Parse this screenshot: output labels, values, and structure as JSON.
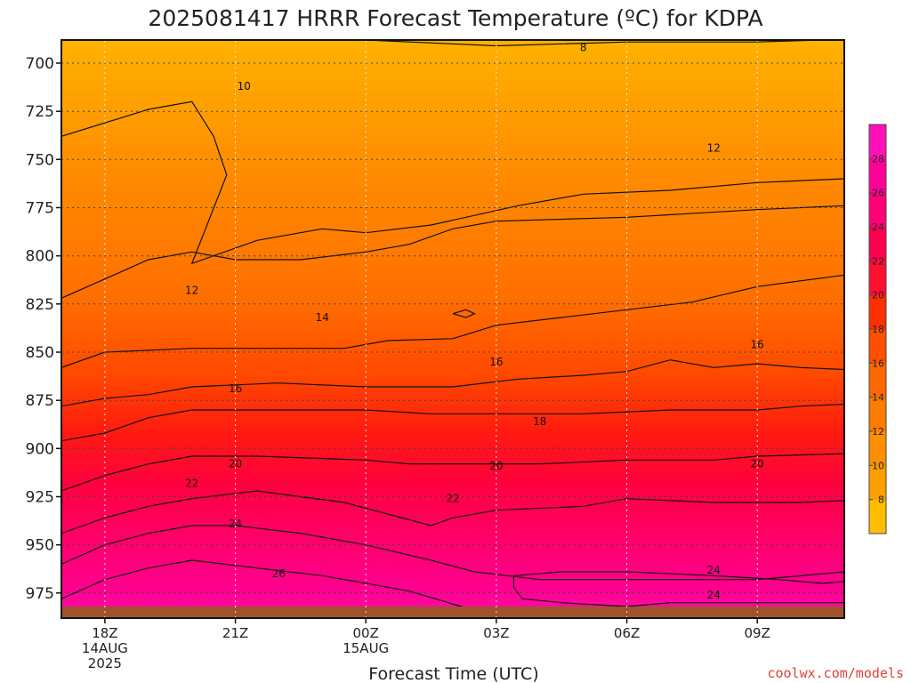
{
  "chart_data": {
    "type": "heatmap",
    "title": "2025081417 HRRR Forecast Temperature (ºC) for KDPA",
    "xlabel": "Forecast Time (UTC)",
    "ylabel": "",
    "y_axis": {
      "unit": "hPa",
      "inverted": true,
      "ylim": [
        988,
        688
      ],
      "ticks": [
        700,
        725,
        750,
        775,
        800,
        825,
        850,
        875,
        900,
        925,
        950,
        975
      ]
    },
    "x_axis": {
      "unit": "forecast hour",
      "xlim": [
        -1,
        17
      ],
      "ticks": [
        {
          "hour": 0,
          "lines": [
            "18Z",
            "14AUG",
            "2025"
          ]
        },
        {
          "hour": 3,
          "lines": [
            "21Z"
          ]
        },
        {
          "hour": 6,
          "lines": [
            "00Z",
            "15AUG"
          ]
        },
        {
          "hour": 9,
          "lines": [
            "03Z"
          ]
        },
        {
          "hour": 12,
          "lines": [
            "06Z"
          ]
        },
        {
          "hour": 15,
          "lines": [
            "09Z"
          ]
        }
      ]
    },
    "grid": true,
    "colorbar": {
      "placement": "right",
      "levels": [
        6,
        8,
        10,
        12,
        14,
        16,
        18,
        20,
        22,
        24,
        26,
        28,
        30
      ],
      "colors": [
        "#ffbf00",
        "#ff9f00",
        "#ff8f00",
        "#ff7c00",
        "#ff6a00",
        "#ff5000",
        "#ff3000",
        "#ff1030",
        "#ff0050",
        "#ff0078",
        "#ff0098",
        "#ff10b8"
      ],
      "tick_labels": [
        "8",
        "10",
        "12",
        "14",
        "16",
        "18",
        "20",
        "22",
        "24",
        "26",
        "28"
      ]
    },
    "contours": [
      {
        "level": 8,
        "points": [
          [
            0,
            0
          ],
          [
            3.6,
            0
          ],
          [
            6,
            0
          ],
          [
            9,
            1.5
          ],
          [
            12,
            0.5
          ],
          [
            15,
            0.5
          ],
          [
            18,
            -0.5
          ]
        ]
      },
      {
        "level": 10,
        "points": [
          [
            -1,
            25
          ],
          [
            1,
            18
          ],
          [
            2.0,
            16
          ],
          [
            2.5,
            25
          ],
          [
            2.8,
            35
          ],
          [
            2.0,
            58
          ],
          [
            3.5,
            52
          ],
          [
            5.0,
            49
          ],
          [
            6.0,
            50
          ],
          [
            7.5,
            48
          ],
          [
            9.5,
            43
          ],
          [
            11,
            40
          ],
          [
            13,
            39
          ],
          [
            15,
            37
          ],
          [
            17,
            36
          ],
          [
            18,
            33
          ]
        ]
      },
      {
        "level": 12,
        "points": [
          [
            -1,
            67
          ],
          [
            0,
            62
          ],
          [
            1,
            57
          ],
          [
            2,
            55
          ],
          [
            3,
            57
          ],
          [
            4.5,
            57
          ],
          [
            6,
            55
          ],
          [
            7,
            53
          ],
          [
            8,
            49
          ],
          [
            9,
            47
          ],
          [
            12,
            46
          ],
          [
            15,
            44
          ],
          [
            17,
            43
          ],
          [
            18,
            42
          ]
        ]
      },
      {
        "level": 14,
        "points": [
          [
            -1,
            85
          ],
          [
            0,
            81
          ],
          [
            2,
            80
          ],
          [
            4,
            80
          ],
          [
            5.5,
            80
          ],
          [
            6.5,
            78
          ],
          [
            8,
            77.5
          ],
          [
            9,
            74
          ],
          [
            10.5,
            72
          ],
          [
            12,
            70
          ],
          [
            13.5,
            68
          ],
          [
            15,
            64
          ],
          [
            17,
            61
          ],
          [
            18,
            60
          ]
        ]
      },
      {
        "level": 16,
        "points": [
          [
            -1,
            95
          ],
          [
            0,
            93
          ],
          [
            1,
            92
          ],
          [
            2,
            90
          ],
          [
            4,
            89
          ],
          [
            6,
            90
          ],
          [
            8,
            90
          ],
          [
            9.5,
            88
          ],
          [
            11,
            87
          ],
          [
            12,
            86
          ],
          [
            13,
            83
          ],
          [
            14,
            85
          ],
          [
            15,
            84
          ],
          [
            16,
            85
          ],
          [
            18,
            86
          ]
        ]
      },
      {
        "level": 18,
        "points": [
          [
            -1,
            104
          ],
          [
            0,
            102
          ],
          [
            1,
            98
          ],
          [
            2,
            96
          ],
          [
            3.5,
            96
          ],
          [
            6,
            96
          ],
          [
            7.5,
            97
          ],
          [
            9,
            97
          ],
          [
            11,
            97
          ],
          [
            13,
            96
          ],
          [
            15,
            96
          ],
          [
            16,
            95
          ],
          [
            18,
            94
          ]
        ]
      },
      {
        "level": 20,
        "points": [
          [
            -1,
            117
          ],
          [
            0,
            113
          ],
          [
            1,
            110
          ],
          [
            2,
            108
          ],
          [
            3.5,
            108
          ],
          [
            6,
            109
          ],
          [
            7,
            110
          ],
          [
            8.5,
            110
          ],
          [
            10,
            110
          ],
          [
            12,
            109
          ],
          [
            14,
            109
          ],
          [
            15,
            108
          ],
          [
            18,
            107
          ]
        ]
      },
      {
        "level": 22,
        "points": [
          [
            -1,
            128
          ],
          [
            0,
            124
          ],
          [
            1,
            121
          ],
          [
            2,
            119
          ],
          [
            3.5,
            117
          ],
          [
            5.5,
            120
          ],
          [
            6.5,
            123
          ],
          [
            7.5,
            126
          ],
          [
            8,
            124
          ],
          [
            9,
            122
          ],
          [
            11,
            121
          ],
          [
            12,
            119
          ],
          [
            14,
            120
          ],
          [
            16,
            120
          ],
          [
            18,
            119
          ]
        ]
      },
      {
        "level": 24,
        "points": [
          [
            -1,
            136
          ],
          [
            0,
            131
          ],
          [
            1,
            128
          ],
          [
            2,
            126
          ],
          [
            3,
            126
          ],
          [
            4.5,
            128
          ],
          [
            6,
            131
          ],
          [
            7.5,
            135
          ],
          [
            8.5,
            138
          ],
          [
            10,
            140
          ],
          [
            12.5,
            140
          ],
          [
            15,
            140
          ],
          [
            17,
            138
          ],
          [
            18,
            136
          ]
        ]
      },
      {
        "level": 26,
        "points": [
          [
            -1,
            145
          ],
          [
            0,
            140
          ],
          [
            1,
            137
          ],
          [
            2,
            135
          ],
          [
            3.5,
            137
          ],
          [
            5,
            139
          ],
          [
            7,
            143
          ],
          [
            8.5,
            148
          ],
          [
            9.5,
            151
          ]
        ]
      },
      {
        "level": 24,
        "points": [
          [
            9.4,
            139
          ],
          [
            10.5,
            138
          ],
          [
            12,
            138
          ],
          [
            14,
            139
          ],
          [
            15.5,
            140
          ],
          [
            16.5,
            141
          ],
          [
            17.5,
            140
          ],
          [
            18,
            139
          ],
          [
            18,
            146
          ],
          [
            15,
            146
          ],
          [
            13,
            146
          ],
          [
            12,
            147
          ],
          [
            10.5,
            146
          ],
          [
            9.6,
            145
          ],
          [
            9.4,
            142
          ],
          [
            9.4,
            139
          ]
        ]
      },
      {
        "level": 26,
        "points": [
          [
            0.5,
            151
          ],
          [
            1.5,
            149
          ],
          [
            2,
            148
          ],
          [
            3,
            149
          ],
          [
            3.5,
            150
          ]
        ]
      },
      {
        "level": 14,
        "points": [
          [
            8.0,
            71
          ],
          [
            8.3,
            70
          ],
          [
            8.5,
            71
          ],
          [
            8.3,
            72
          ],
          [
            8.0,
            71
          ]
        ]
      }
    ],
    "contour_labels": [
      {
        "text": "8",
        "hour": 11.0,
        "pressure": 692
      },
      {
        "text": "10",
        "hour": 3.2,
        "pressure": 712
      },
      {
        "text": "12",
        "hour": 14.0,
        "pressure": 744
      },
      {
        "text": "12",
        "hour": 2.0,
        "pressure": 818
      },
      {
        "text": "14",
        "hour": 5.0,
        "pressure": 832
      },
      {
        "text": "16",
        "hour": 3.0,
        "pressure": 869
      },
      {
        "text": "16",
        "hour": 9.0,
        "pressure": 855
      },
      {
        "text": "16",
        "hour": 15.0,
        "pressure": 846
      },
      {
        "text": "18",
        "hour": 10.0,
        "pressure": 886
      },
      {
        "text": "20",
        "hour": 3.0,
        "pressure": 908
      },
      {
        "text": "20",
        "hour": 9.0,
        "pressure": 909
      },
      {
        "text": "20",
        "hour": 15.0,
        "pressure": 908
      },
      {
        "text": "22",
        "hour": 2.0,
        "pressure": 918
      },
      {
        "text": "22",
        "hour": 8.0,
        "pressure": 926
      },
      {
        "text": "24",
        "hour": 3.0,
        "pressure": 939
      },
      {
        "text": "24",
        "hour": 14.0,
        "pressure": 963
      },
      {
        "text": "24",
        "hour": 14.0,
        "pressure": 976
      },
      {
        "text": "26",
        "hour": 4.0,
        "pressure": 965
      }
    ]
  },
  "credit": "coolwx.com/models"
}
